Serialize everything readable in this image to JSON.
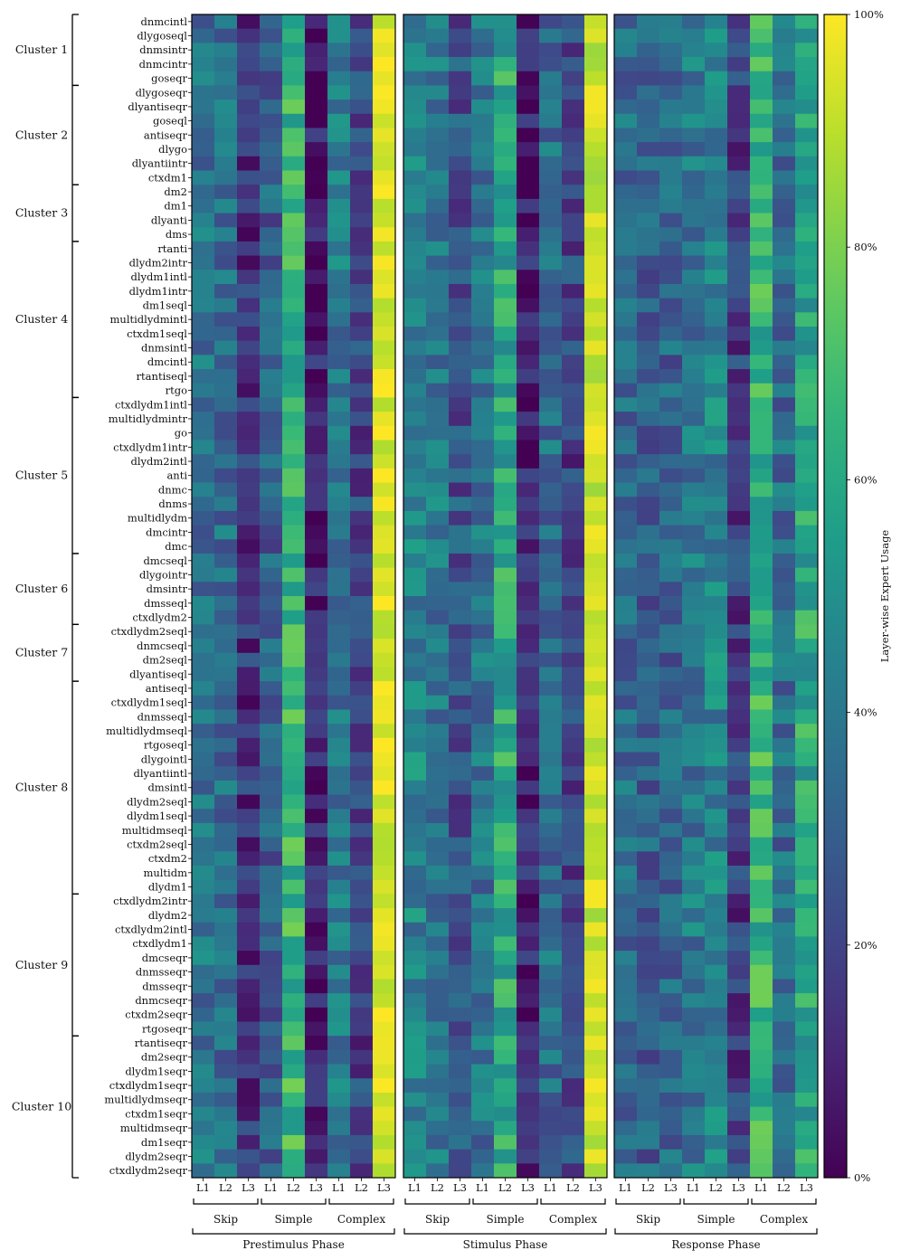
{
  "chart_data": {
    "type": "heatmap",
    "colormap": "viridis",
    "colorbar": {
      "label": "Layer-wise Expert Usage",
      "ticks": [
        "0%",
        "20%",
        "40%",
        "60%",
        "80%",
        "100%"
      ],
      "range": [
        0,
        100
      ]
    },
    "phases": [
      "Prestimulus Phase",
      "Stimulus Phase",
      "Response Phase"
    ],
    "expert_groups": [
      "Skip",
      "Simple",
      "Complex"
    ],
    "layers": [
      "L1",
      "L2",
      "L3"
    ],
    "clusters": [
      {
        "label": "Cluster 1",
        "start": 0,
        "count": 5
      },
      {
        "label": "Cluster 2",
        "start": 5,
        "count": 7
      },
      {
        "label": "Cluster 3",
        "start": 12,
        "count": 4
      },
      {
        "label": "Cluster 4",
        "start": 16,
        "count": 11
      },
      {
        "label": "Cluster 5",
        "start": 27,
        "count": 11
      },
      {
        "label": "Cluster 6",
        "start": 38,
        "count": 5
      },
      {
        "label": "Cluster 7",
        "start": 43,
        "count": 4
      },
      {
        "label": "Cluster 8",
        "start": 47,
        "count": 15
      },
      {
        "label": "Cluster 9",
        "start": 62,
        "count": 10
      },
      {
        "label": "Cluster 10",
        "start": 72,
        "count": 10
      }
    ],
    "rows": [
      "dnmcintl",
      "dlygoseql",
      "dnmsintr",
      "dnmcintr",
      "goseqr",
      "dlygoseqr",
      "dlyantiseqr",
      "goseql",
      "antiseqr",
      "dlygo",
      "dlyantiintr",
      "ctxdm1",
      "dm2",
      "dm1",
      "dlyanti",
      "dms",
      "rtanti",
      "dlydm2intr",
      "dlydm1intl",
      "dlydm1intr",
      "dm1seql",
      "multidlydmintl",
      "ctxdm1seql",
      "dnmsintl",
      "dmcintl",
      "rtantiseql",
      "rtgo",
      "ctxdlydm1intl",
      "multidlydmintr",
      "go",
      "ctxdlydm1intr",
      "dlydm2intl",
      "anti",
      "dnmc",
      "dnms",
      "multidlydm",
      "dmcintr",
      "dmc",
      "dmcseql",
      "dlygointr",
      "dmsintr",
      "dmsseql",
      "ctxdlydm2",
      "ctxdlydm2seql",
      "dnmcseql",
      "dm2seql",
      "dlyantiseql",
      "antiseql",
      "ctxdlydm1seql",
      "dnmsseql",
      "multidlydmseql",
      "rtgoseql",
      "dlygointl",
      "dlyantiintl",
      "dmsintl",
      "dlydm2seql",
      "dlydm1seql",
      "multidmseql",
      "ctxdm2seql",
      "ctxdm2",
      "multidm",
      "dlydm1",
      "ctxdlydm2intr",
      "dlydm2",
      "ctxdlydm2intl",
      "ctxdlydm1",
      "dmcseqr",
      "dnmsseqr",
      "dmsseqr",
      "dnmcseqr",
      "ctxdm2seqr",
      "rtgoseqr",
      "rtantiseqr",
      "dm2seqr",
      "dlydm1seqr",
      "ctxdlydm1seqr",
      "multidlydmseqr",
      "ctxdm1seqr",
      "multidmseqr",
      "dm1seqr",
      "dlydm2seqr",
      "ctxdlydm2seqr"
    ],
    "column_profiles": {
      "Prestimulus Phase": [
        38,
        35,
        15,
        30,
        65,
        8,
        40,
        20,
        95
      ],
      "Stimulus Phase": [
        45,
        40,
        25,
        38,
        60,
        8,
        35,
        20,
        92
      ],
      "Response Phase": [
        35,
        30,
        32,
        40,
        45,
        18,
        65,
        35,
        60
      ]
    },
    "values_note": "Per-cell usage percentages estimated from color; generated per row from column profiles with row variation."
  }
}
